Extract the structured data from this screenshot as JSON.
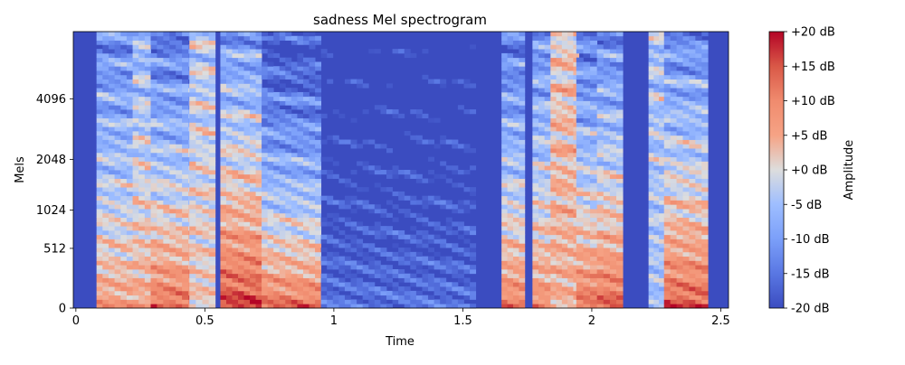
{
  "chart_data": {
    "type": "heatmap",
    "title": "sadness Mel spectrogram",
    "xlabel": "Time",
    "ylabel": "Mels",
    "xlim": [
      -0.01,
      2.53
    ],
    "x_ticks": [
      {
        "value": 0,
        "label": "0"
      },
      {
        "value": 0.5,
        "label": "0.5"
      },
      {
        "value": 1,
        "label": "1"
      },
      {
        "value": 1.5,
        "label": "1.5"
      },
      {
        "value": 2,
        "label": "2"
      },
      {
        "value": 2.5,
        "label": "2.5"
      }
    ],
    "y_scale": "mel",
    "y_ticks": [
      {
        "value": 0,
        "label": "0"
      },
      {
        "value": 512,
        "label": "512"
      },
      {
        "value": 1024,
        "label": "1024"
      },
      {
        "value": 2048,
        "label": "2048"
      },
      {
        "value": 4096,
        "label": "4096"
      }
    ],
    "colorbar": {
      "label": "Amplitude",
      "range": [
        -20,
        20
      ],
      "colormap": "coolwarm",
      "colors": {
        "min": "#3b4cc0",
        "mid": "#dddddd",
        "max": "#b40426"
      },
      "ticks": [
        {
          "value": 20,
          "label": "+20 dB"
        },
        {
          "value": 15,
          "label": "+15 dB"
        },
        {
          "value": 10,
          "label": "+10 dB"
        },
        {
          "value": 5,
          "label": "+5 dB"
        },
        {
          "value": 0,
          "label": "+0 dB"
        },
        {
          "value": -5,
          "label": "-5 dB"
        },
        {
          "value": -10,
          "label": "-10 dB"
        },
        {
          "value": -15,
          "label": "-15 dB"
        },
        {
          "value": -20,
          "label": "-20 dB"
        }
      ]
    },
    "energy_segments": [
      {
        "t_start": 0.08,
        "t_end": 0.22,
        "low_db": 8,
        "high_db": -6
      },
      {
        "t_start": 0.22,
        "t_end": 0.29,
        "low_db": 6,
        "high_db": 0
      },
      {
        "t_start": 0.29,
        "t_end": 0.46,
        "low_db": 14,
        "high_db": -8
      },
      {
        "t_start": 0.44,
        "t_end": 0.54,
        "low_db": 2,
        "high_db": 3
      },
      {
        "t_start": 0.56,
        "t_end": 0.72,
        "low_db": 18,
        "high_db": -4
      },
      {
        "t_start": 0.72,
        "t_end": 0.95,
        "low_db": 14,
        "high_db": -14
      },
      {
        "t_start": 0.95,
        "t_end": 1.55,
        "low_db": -15,
        "high_db": -20
      },
      {
        "t_start": 1.65,
        "t_end": 1.74,
        "low_db": 12,
        "high_db": -8
      },
      {
        "t_start": 1.77,
        "t_end": 1.84,
        "low_db": 10,
        "high_db": -5
      },
      {
        "t_start": 1.84,
        "t_end": 1.95,
        "low_db": 4,
        "high_db": 8
      },
      {
        "t_start": 1.94,
        "t_end": 2.02,
        "low_db": 14,
        "high_db": -8
      },
      {
        "t_start": 2.02,
        "t_end": 2.12,
        "low_db": 15,
        "high_db": -6
      },
      {
        "t_start": 2.22,
        "t_end": 2.28,
        "low_db": -6,
        "high_db": 2
      },
      {
        "t_start": 2.28,
        "t_end": 2.45,
        "low_db": 16,
        "high_db": -6
      }
    ]
  }
}
